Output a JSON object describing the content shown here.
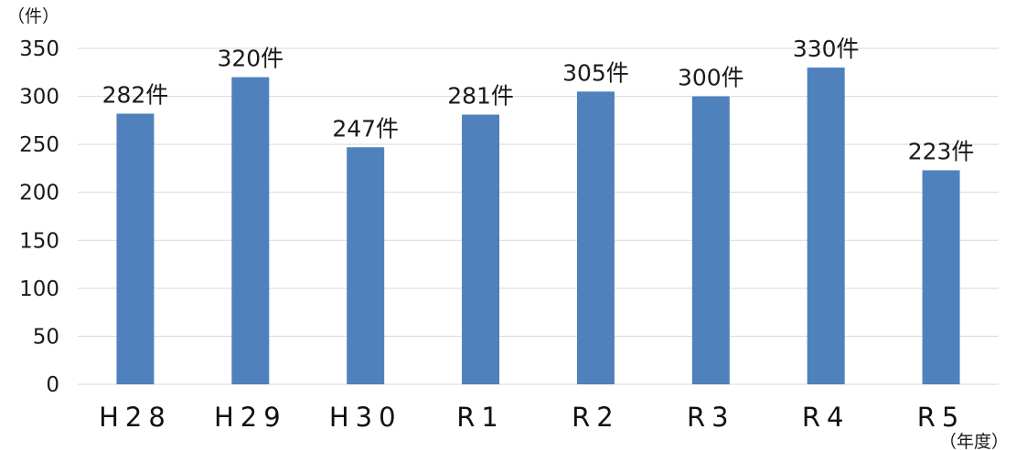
{
  "chart_data": {
    "type": "bar",
    "categories": [
      "H28",
      "H29",
      "H30",
      "R1",
      "R2",
      "R3",
      "R4",
      "R5"
    ],
    "values": [
      282,
      320,
      247,
      281,
      305,
      300,
      330,
      223
    ],
    "data_labels": [
      "282件",
      "320件",
      "247件",
      "281件",
      "305件",
      "300件",
      "330件",
      "223件"
    ],
    "y_unit_label": "（件）",
    "x_unit_label": "（年度）",
    "ylim": [
      0,
      350
    ],
    "yticks": [
      0,
      50,
      100,
      150,
      200,
      250,
      300,
      350
    ],
    "grid": true,
    "bar_color": "#4F81BD",
    "gridline_color": "#D9D9D9"
  }
}
